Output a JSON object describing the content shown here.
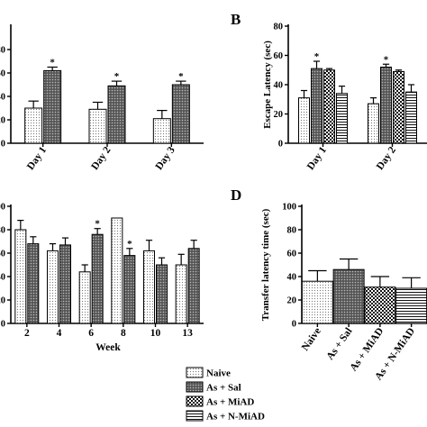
{
  "panels": {
    "A": {
      "letter": ""
    },
    "B": {
      "letter": "B"
    },
    "C": {
      "letter": ""
    },
    "D": {
      "letter": "D"
    }
  },
  "legend": [
    {
      "label": "Naive",
      "pattern": "dots"
    },
    {
      "label": "As + Sal",
      "pattern": "dense"
    },
    {
      "label": "As + MiAD",
      "pattern": "check"
    },
    {
      "label": "As + N-MiAD",
      "pattern": "hlines"
    }
  ],
  "chart_data": [
    {
      "id": "A",
      "type": "bar",
      "title": "",
      "xlabel": "",
      "ylabel": "",
      "ylim": [
        0,
        100
      ],
      "yticks": [
        "0",
        "20",
        "40",
        "60",
        "80"
      ],
      "categories": [
        "Day 1",
        "Day 2",
        "Day 3"
      ],
      "series": [
        {
          "pattern": "dots",
          "values": [
            30,
            29,
            21
          ],
          "errors": [
            6,
            6,
            7
          ],
          "stars": [
            false,
            false,
            false
          ]
        },
        {
          "pattern": "dense",
          "values": [
            62,
            49,
            50
          ],
          "errors": [
            3,
            4,
            3
          ],
          "stars": [
            true,
            true,
            true
          ]
        }
      ]
    },
    {
      "id": "B",
      "type": "bar",
      "title": "",
      "xlabel": "",
      "ylabel": "Escape Latency (sec)",
      "ylim": [
        0,
        80
      ],
      "yticks": [
        "0",
        "20",
        "40",
        "60",
        "80"
      ],
      "categories": [
        "Day 1",
        "Day 2"
      ],
      "series": [
        {
          "pattern": "dots",
          "values": [
            31,
            27
          ],
          "errors": [
            5,
            4
          ],
          "stars": [
            false,
            false
          ]
        },
        {
          "pattern": "dense",
          "values": [
            51,
            52
          ],
          "errors": [
            5,
            2
          ],
          "stars": [
            true,
            true
          ]
        },
        {
          "pattern": "check",
          "values": [
            50,
            49
          ],
          "errors": [
            1,
            1
          ],
          "stars": [
            false,
            false
          ]
        },
        {
          "pattern": "hlines",
          "values": [
            34,
            35
          ],
          "errors": [
            5,
            5
          ],
          "stars": [
            false,
            false
          ]
        }
      ]
    },
    {
      "id": "C",
      "type": "bar",
      "title": "",
      "xlabel": "Week",
      "ylabel": "",
      "ylim": [
        0,
        100
      ],
      "yticks": [
        "0",
        "20",
        "40",
        "60",
        "80",
        "100"
      ],
      "categories": [
        "2",
        "4",
        "6",
        "8",
        "10",
        "13"
      ],
      "series": [
        {
          "pattern": "dots",
          "values": [
            80,
            62,
            44,
            90,
            62,
            50
          ],
          "errors": [
            8,
            6,
            6,
            0,
            9,
            9
          ],
          "stars": [
            false,
            false,
            false,
            false,
            false,
            false
          ]
        },
        {
          "pattern": "dense",
          "values": [
            68,
            67,
            76,
            58,
            50,
            64
          ],
          "errors": [
            6,
            6,
            5,
            6,
            6,
            7
          ],
          "stars": [
            false,
            false,
            true,
            true,
            false,
            false
          ]
        }
      ]
    },
    {
      "id": "D",
      "type": "bar",
      "title": "",
      "xlabel": "",
      "ylabel": "Transfer latency time (sec)",
      "ylim": [
        0,
        100
      ],
      "yticks": [
        "0",
        "20",
        "40",
        "60",
        "80",
        "100"
      ],
      "categories": [
        "Naive",
        "As + Sal",
        "As + MiAD",
        "As + N-MiAD"
      ],
      "series": [
        {
          "pattern": "multi",
          "values": [
            36,
            46,
            31,
            30
          ],
          "errors": [
            9,
            9,
            9,
            9
          ],
          "patterns": [
            "dots",
            "dense",
            "check",
            "hlines"
          ]
        }
      ]
    }
  ]
}
